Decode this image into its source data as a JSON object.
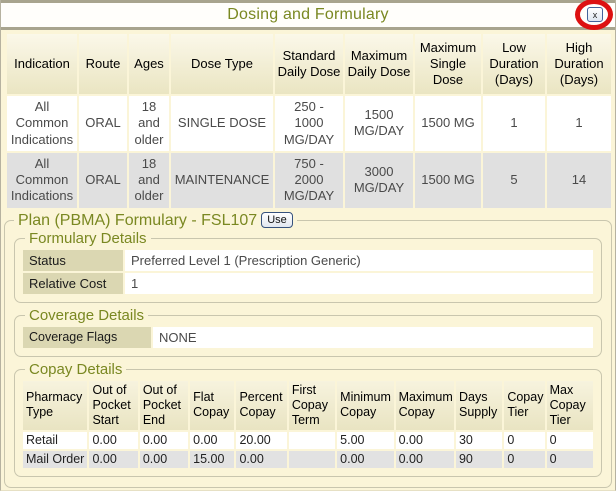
{
  "window": {
    "title": "Dosing and Formulary",
    "close_label": "x"
  },
  "colors": {
    "accent_olive": "#7A8822",
    "page_background": "#FBF5D8",
    "header_cell": "#EAE5C2",
    "label_cell": "#DBD7B2",
    "alt_row_gray": "#E0E0E0",
    "annotation_red": "#DD1111"
  },
  "dosing_table": {
    "headers": [
      "Indication",
      "Route",
      "Ages",
      "Dose Type",
      "Standard Daily Dose",
      "Maximum Daily Dose",
      "Maximum Single Dose",
      "Low Duration (Days)",
      "High Duration (Days)"
    ],
    "rows": [
      [
        "All Common Indications",
        "ORAL",
        "18 and older",
        "SINGLE DOSE",
        "250 - 1000 MG/DAY",
        "1500 MG/DAY",
        "1500 MG",
        "1",
        "1"
      ],
      [
        "All Common Indications",
        "ORAL",
        "18 and older",
        "MAINTENANCE",
        "750 - 2000 MG/DAY",
        "3000 MG/DAY",
        "1500 MG",
        "5",
        "14"
      ]
    ]
  },
  "plan_formulary": {
    "legend": "Plan (PBMA) Formulary - FSL107",
    "use_button_label": "Use",
    "formulary_details": {
      "legend": "Formulary Details",
      "fields": [
        {
          "label": "Status",
          "value": "Preferred Level 1 (Prescription Generic)"
        },
        {
          "label": "Relative Cost",
          "value": "1"
        }
      ]
    },
    "coverage_details": {
      "legend": "Coverage Details",
      "fields": [
        {
          "label": "Coverage Flags",
          "value": "NONE"
        }
      ]
    },
    "copay_details": {
      "legend": "Copay Details",
      "headers": [
        "Pharmacy Type",
        "Out of Pocket Start",
        "Out of Pocket End",
        "Flat Copay",
        "Percent Copay",
        "First Copay Term",
        "Minimum Copay",
        "Maximum Copay",
        "Days Supply",
        "Copay Tier",
        "Max Copay Tier"
      ],
      "rows": [
        [
          "Retail",
          "0.00",
          "0.00",
          "0.00",
          "20.00",
          "",
          "5.00",
          "0.00",
          "30",
          "0",
          "0"
        ],
        [
          "Mail Order",
          "0.00",
          "0.00",
          "15.00",
          "0.00",
          "",
          "0.00",
          "0.00",
          "90",
          "0",
          "0"
        ]
      ]
    }
  }
}
